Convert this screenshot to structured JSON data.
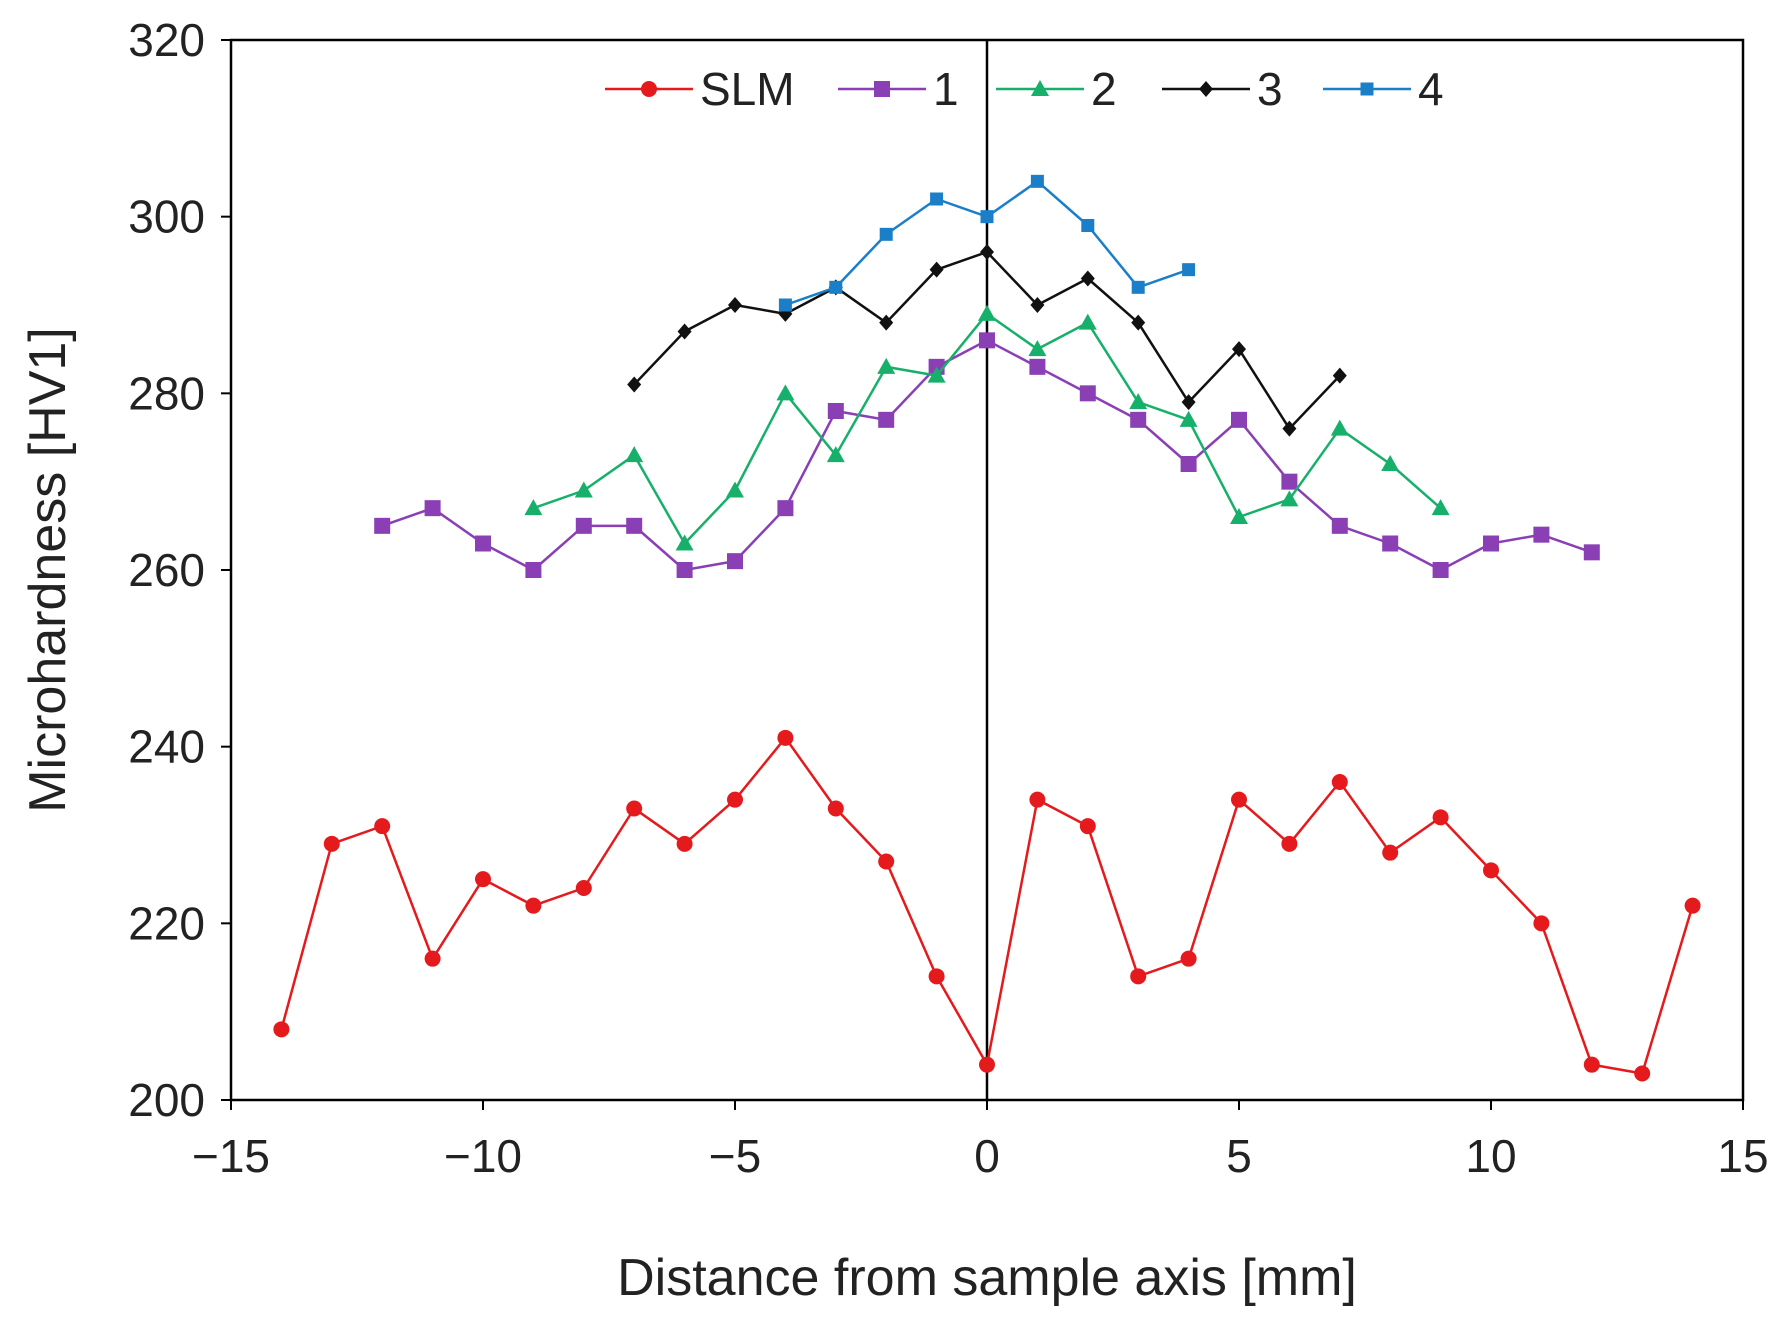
{
  "chart_data": {
    "type": "line",
    "title": "",
    "xlabel": "Distance from sample axis [mm]",
    "ylabel": "Microhardness [HV1]",
    "xlim": [
      -15,
      15
    ],
    "ylim": [
      200,
      320
    ],
    "xticks": [
      -15,
      -10,
      -5,
      0,
      5,
      10,
      15
    ],
    "xtick_labels": [
      "−15",
      "−10",
      "−5",
      "0",
      "5",
      "10",
      "15"
    ],
    "yticks": [
      200,
      220,
      240,
      260,
      280,
      300,
      320
    ],
    "ytick_labels": [
      "200",
      "220",
      "240",
      "260",
      "280",
      "300",
      "320"
    ],
    "grid": false,
    "legend_position": "top-center",
    "vertical_reference_line_x": 0,
    "series": [
      {
        "name": "SLM",
        "color": "#e41a1c",
        "marker": "circle",
        "x": [
          -14,
          -13,
          -12,
          -11,
          -10,
          -9,
          -8,
          -7,
          -6,
          -5,
          -4,
          -3,
          -2,
          -1,
          0,
          1,
          2,
          3,
          4,
          5,
          6,
          7,
          8,
          9,
          10,
          11,
          12,
          13,
          14
        ],
        "y": [
          208,
          229,
          231,
          216,
          225,
          222,
          224,
          233,
          229,
          234,
          241,
          233,
          227,
          214,
          204,
          234,
          231,
          214,
          216,
          234,
          229,
          236,
          228,
          232,
          226,
          220,
          204,
          203,
          222
        ]
      },
      {
        "name": "1",
        "color": "#8a3fb5",
        "marker": "square",
        "x": [
          -12,
          -11,
          -10,
          -9,
          -8,
          -7,
          -6,
          -5,
          -4,
          -3,
          -2,
          -1,
          0,
          1,
          2,
          3,
          4,
          5,
          6,
          7,
          8,
          9,
          10,
          11,
          12
        ],
        "y": [
          265,
          267,
          263,
          260,
          265,
          265,
          260,
          261,
          267,
          278,
          277,
          283,
          286,
          283,
          280,
          277,
          272,
          277,
          270,
          265,
          263,
          260,
          263,
          264,
          262
        ]
      },
      {
        "name": "2",
        "color": "#17b06b",
        "marker": "triangle",
        "x": [
          -9,
          -8,
          -7,
          -6,
          -5,
          -4,
          -3,
          -2,
          -1,
          0,
          1,
          2,
          3,
          4,
          5,
          6,
          7,
          8,
          9
        ],
        "y": [
          267,
          269,
          273,
          263,
          269,
          280,
          273,
          283,
          282,
          289,
          285,
          288,
          279,
          277,
          266,
          268,
          276,
          272,
          267
        ]
      },
      {
        "name": "3",
        "color": "#111111",
        "marker": "diamond",
        "x": [
          -7,
          -6,
          -5,
          -4,
          -3,
          -2,
          -1,
          0,
          1,
          2,
          3,
          4,
          5,
          6,
          7
        ],
        "y": [
          281,
          287,
          290,
          289,
          292,
          288,
          294,
          296,
          290,
          293,
          288,
          279,
          285,
          276,
          282
        ]
      },
      {
        "name": "4",
        "color": "#1a7fc8",
        "marker": "square-small",
        "x": [
          -4,
          -3,
          -2,
          -1,
          0,
          1,
          2,
          3,
          4
        ],
        "y": [
          290,
          292,
          298,
          302,
          300,
          304,
          299,
          292,
          294
        ]
      }
    ]
  }
}
